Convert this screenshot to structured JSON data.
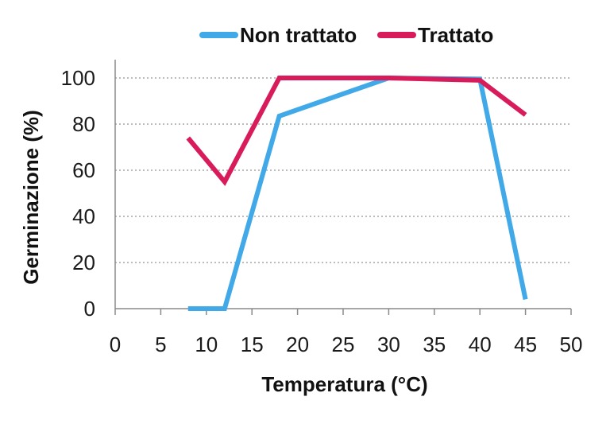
{
  "chart_data": {
    "type": "line",
    "title": "",
    "xlabel": "Temperatura (°C)",
    "ylabel": "Germinazione (%)",
    "xlim": [
      0,
      50
    ],
    "ylim": [
      0,
      100
    ],
    "xticks": [
      0,
      5,
      10,
      15,
      20,
      25,
      30,
      35,
      40,
      45,
      50
    ],
    "yticks": [
      0,
      20,
      40,
      60,
      80,
      100
    ],
    "grid": "horizontal-dotted",
    "legend_position": "top",
    "series": [
      {
        "name": "Non trattato",
        "color": "#41a9e8",
        "x": [
          8,
          12,
          18,
          30,
          40,
          45
        ],
        "y": [
          0,
          0,
          83.5,
          100,
          99.5,
          4
        ]
      },
      {
        "name": "Trattato",
        "color": "#d81b5a",
        "x": [
          8,
          12,
          18,
          30,
          40,
          45
        ],
        "y": [
          74,
          55,
          100,
          100,
          99,
          84
        ]
      }
    ]
  }
}
